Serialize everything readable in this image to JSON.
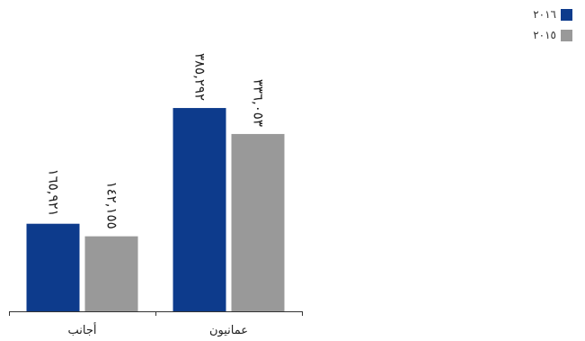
{
  "chart_data": {
    "type": "bar",
    "categories": [
      "أجانب",
      "عمانيون"
    ],
    "series": [
      {
        "name": "٢٠١٦",
        "color": "#0d3b8c",
        "values": [
          165921,
          385292
        ],
        "value_labels": [
          "١٦٥,٩٢١",
          "٣٨٥,٢٩٢"
        ]
      },
      {
        "name": "٢٠١٥",
        "color": "#999999",
        "values": [
          142155,
          336053
        ],
        "value_labels": [
          "١٤٢,١٥٥",
          "٣٣٦,٠٥٣"
        ]
      }
    ],
    "ylim": [
      0,
      590000
    ],
    "grid": false,
    "legend_position": "top-right",
    "title": "",
    "xlabel": "",
    "ylabel": ""
  }
}
